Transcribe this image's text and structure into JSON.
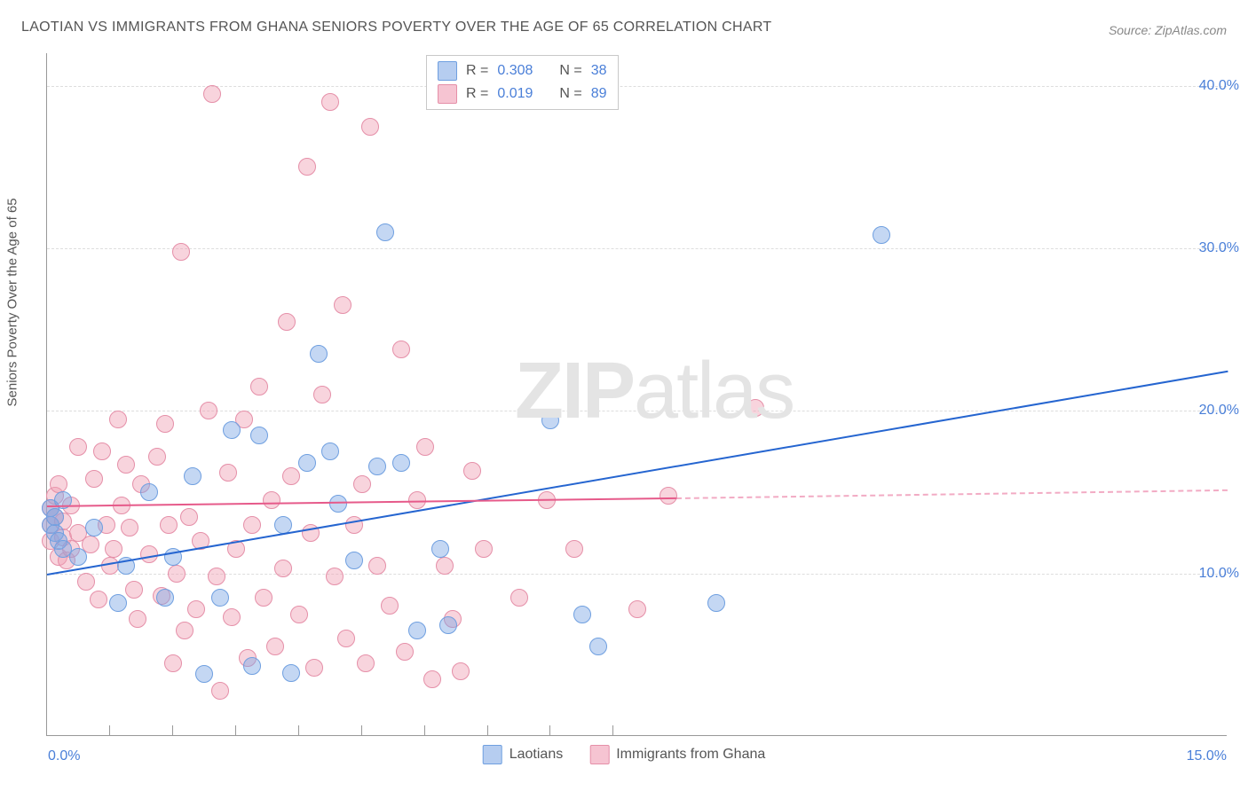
{
  "title": "LAOTIAN VS IMMIGRANTS FROM GHANA SENIORS POVERTY OVER THE AGE OF 65 CORRELATION CHART",
  "source": "Source: ZipAtlas.com",
  "y_axis_label": "Seniors Poverty Over the Age of 65",
  "watermark_bold": "ZIP",
  "watermark_rest": "atlas",
  "chart": {
    "type": "scatter",
    "xlim": [
      0,
      15
    ],
    "ylim": [
      0,
      42
    ],
    "y_ticks": [
      10,
      20,
      30,
      40
    ],
    "y_tick_labels": [
      "10.0%",
      "20.0%",
      "30.0%",
      "40.0%"
    ],
    "x_tick_labels": [
      "0.0%",
      "15.0%"
    ],
    "x_minor_ticks": [
      0.8,
      1.6,
      2.4,
      3.2,
      4.0,
      4.8,
      5.6,
      6.4,
      7.2
    ],
    "grid_color": "#dddddd",
    "background_color": "#ffffff",
    "axis_color": "#999999",
    "tick_label_color": "#4a7fd8",
    "point_radius": 10,
    "series": [
      {
        "name": "Laotians",
        "color_fill": "rgba(124,166,228,0.45)",
        "color_stroke": "#6f9fe0",
        "swatch_fill": "#b6cdf0",
        "swatch_border": "#6f9fe0",
        "R": "0.308",
        "N": "38",
        "trend": {
          "x1": 0,
          "y1": 10.0,
          "x2": 15,
          "y2": 22.5,
          "color": "#2565d0",
          "width": 2
        },
        "points": [
          [
            0.05,
            14
          ],
          [
            0.05,
            13
          ],
          [
            0.1,
            12.5
          ],
          [
            0.1,
            13.5
          ],
          [
            0.15,
            12
          ],
          [
            0.2,
            11.5
          ],
          [
            0.2,
            14.5
          ],
          [
            0.9,
            8.2
          ],
          [
            1.0,
            10.5
          ],
          [
            1.3,
            15
          ],
          [
            1.5,
            8.5
          ],
          [
            1.6,
            11
          ],
          [
            1.85,
            16
          ],
          [
            2.0,
            3.8
          ],
          [
            2.2,
            8.5
          ],
          [
            2.35,
            18.8
          ],
          [
            2.6,
            4.3
          ],
          [
            2.7,
            18.5
          ],
          [
            3.0,
            13
          ],
          [
            3.1,
            3.9
          ],
          [
            3.3,
            16.8
          ],
          [
            3.45,
            23.5
          ],
          [
            3.6,
            17.5
          ],
          [
            3.7,
            14.3
          ],
          [
            3.9,
            10.8
          ],
          [
            4.2,
            16.6
          ],
          [
            4.3,
            31
          ],
          [
            4.5,
            16.8
          ],
          [
            4.7,
            6.5
          ],
          [
            5.0,
            11.5
          ],
          [
            5.1,
            6.8
          ],
          [
            6.4,
            19.4
          ],
          [
            6.8,
            7.5
          ],
          [
            7.0,
            5.5
          ],
          [
            8.5,
            8.2
          ],
          [
            10.6,
            30.8
          ],
          [
            0.4,
            11
          ],
          [
            0.6,
            12.8
          ]
        ]
      },
      {
        "name": "Immigrants from Ghana",
        "color_fill": "rgba(240,160,180,0.45)",
        "color_stroke": "#e58fa8",
        "swatch_fill": "#f6c4d2",
        "swatch_border": "#e58fa8",
        "R": "0.019",
        "N": "89",
        "trend": {
          "x1": 0,
          "y1": 14.2,
          "x2": 8,
          "y2": 14.7,
          "color": "#e65a8a",
          "width": 2,
          "dash_x1": 8,
          "dash_y1": 14.7,
          "dash_x2": 15,
          "dash_y2": 15.2
        },
        "points": [
          [
            0.05,
            14
          ],
          [
            0.05,
            13
          ],
          [
            0.05,
            12
          ],
          [
            0.1,
            13.5
          ],
          [
            0.1,
            14.8
          ],
          [
            0.15,
            11
          ],
          [
            0.15,
            15.5
          ],
          [
            0.2,
            12.2
          ],
          [
            0.2,
            13.2
          ],
          [
            0.25,
            10.8
          ],
          [
            0.3,
            11.5
          ],
          [
            0.3,
            14.2
          ],
          [
            0.4,
            17.8
          ],
          [
            0.4,
            12.5
          ],
          [
            0.5,
            9.5
          ],
          [
            0.55,
            11.8
          ],
          [
            0.6,
            15.8
          ],
          [
            0.65,
            8.4
          ],
          [
            0.7,
            17.5
          ],
          [
            0.75,
            13
          ],
          [
            0.8,
            10.5
          ],
          [
            0.85,
            11.5
          ],
          [
            0.9,
            19.5
          ],
          [
            0.95,
            14.2
          ],
          [
            1.0,
            16.7
          ],
          [
            1.05,
            12.8
          ],
          [
            1.1,
            9.0
          ],
          [
            1.15,
            7.2
          ],
          [
            1.2,
            15.5
          ],
          [
            1.3,
            11.2
          ],
          [
            1.4,
            17.2
          ],
          [
            1.45,
            8.6
          ],
          [
            1.5,
            19.2
          ],
          [
            1.55,
            13.0
          ],
          [
            1.6,
            4.5
          ],
          [
            1.65,
            10.0
          ],
          [
            1.7,
            29.8
          ],
          [
            1.75,
            6.5
          ],
          [
            1.8,
            13.5
          ],
          [
            1.9,
            7.8
          ],
          [
            1.95,
            12.0
          ],
          [
            2.05,
            20.0
          ],
          [
            2.1,
            39.5
          ],
          [
            2.15,
            9.8
          ],
          [
            2.2,
            2.8
          ],
          [
            2.3,
            16.2
          ],
          [
            2.35,
            7.3
          ],
          [
            2.4,
            11.5
          ],
          [
            2.5,
            19.5
          ],
          [
            2.55,
            4.8
          ],
          [
            2.6,
            13.0
          ],
          [
            2.7,
            21.5
          ],
          [
            2.75,
            8.5
          ],
          [
            2.85,
            14.5
          ],
          [
            2.9,
            5.5
          ],
          [
            3.0,
            10.3
          ],
          [
            3.05,
            25.5
          ],
          [
            3.1,
            16.0
          ],
          [
            3.2,
            7.5
          ],
          [
            3.3,
            35.0
          ],
          [
            3.35,
            12.5
          ],
          [
            3.4,
            4.2
          ],
          [
            3.5,
            21.0
          ],
          [
            3.6,
            39.0
          ],
          [
            3.65,
            9.8
          ],
          [
            3.75,
            26.5
          ],
          [
            3.8,
            6.0
          ],
          [
            3.9,
            13.0
          ],
          [
            4.0,
            15.5
          ],
          [
            4.05,
            4.5
          ],
          [
            4.1,
            37.5
          ],
          [
            4.2,
            10.5
          ],
          [
            4.35,
            8.0
          ],
          [
            4.5,
            23.8
          ],
          [
            4.55,
            5.2
          ],
          [
            4.7,
            14.5
          ],
          [
            4.8,
            17.8
          ],
          [
            4.9,
            3.5
          ],
          [
            5.05,
            10.5
          ],
          [
            5.15,
            7.2
          ],
          [
            5.25,
            4.0
          ],
          [
            5.4,
            16.3
          ],
          [
            5.55,
            11.5
          ],
          [
            6.0,
            8.5
          ],
          [
            6.35,
            14.5
          ],
          [
            6.7,
            11.5
          ],
          [
            7.5,
            7.8
          ],
          [
            7.9,
            14.8
          ],
          [
            9.0,
            20.2
          ]
        ]
      }
    ],
    "stat_box_labels": {
      "R": "R =",
      "N": "N ="
    }
  },
  "bottom_legend": {
    "items": [
      {
        "label": "Laotians",
        "fill": "#b6cdf0",
        "border": "#6f9fe0"
      },
      {
        "label": "Immigrants from Ghana",
        "fill": "#f6c4d2",
        "border": "#e58fa8"
      }
    ]
  }
}
